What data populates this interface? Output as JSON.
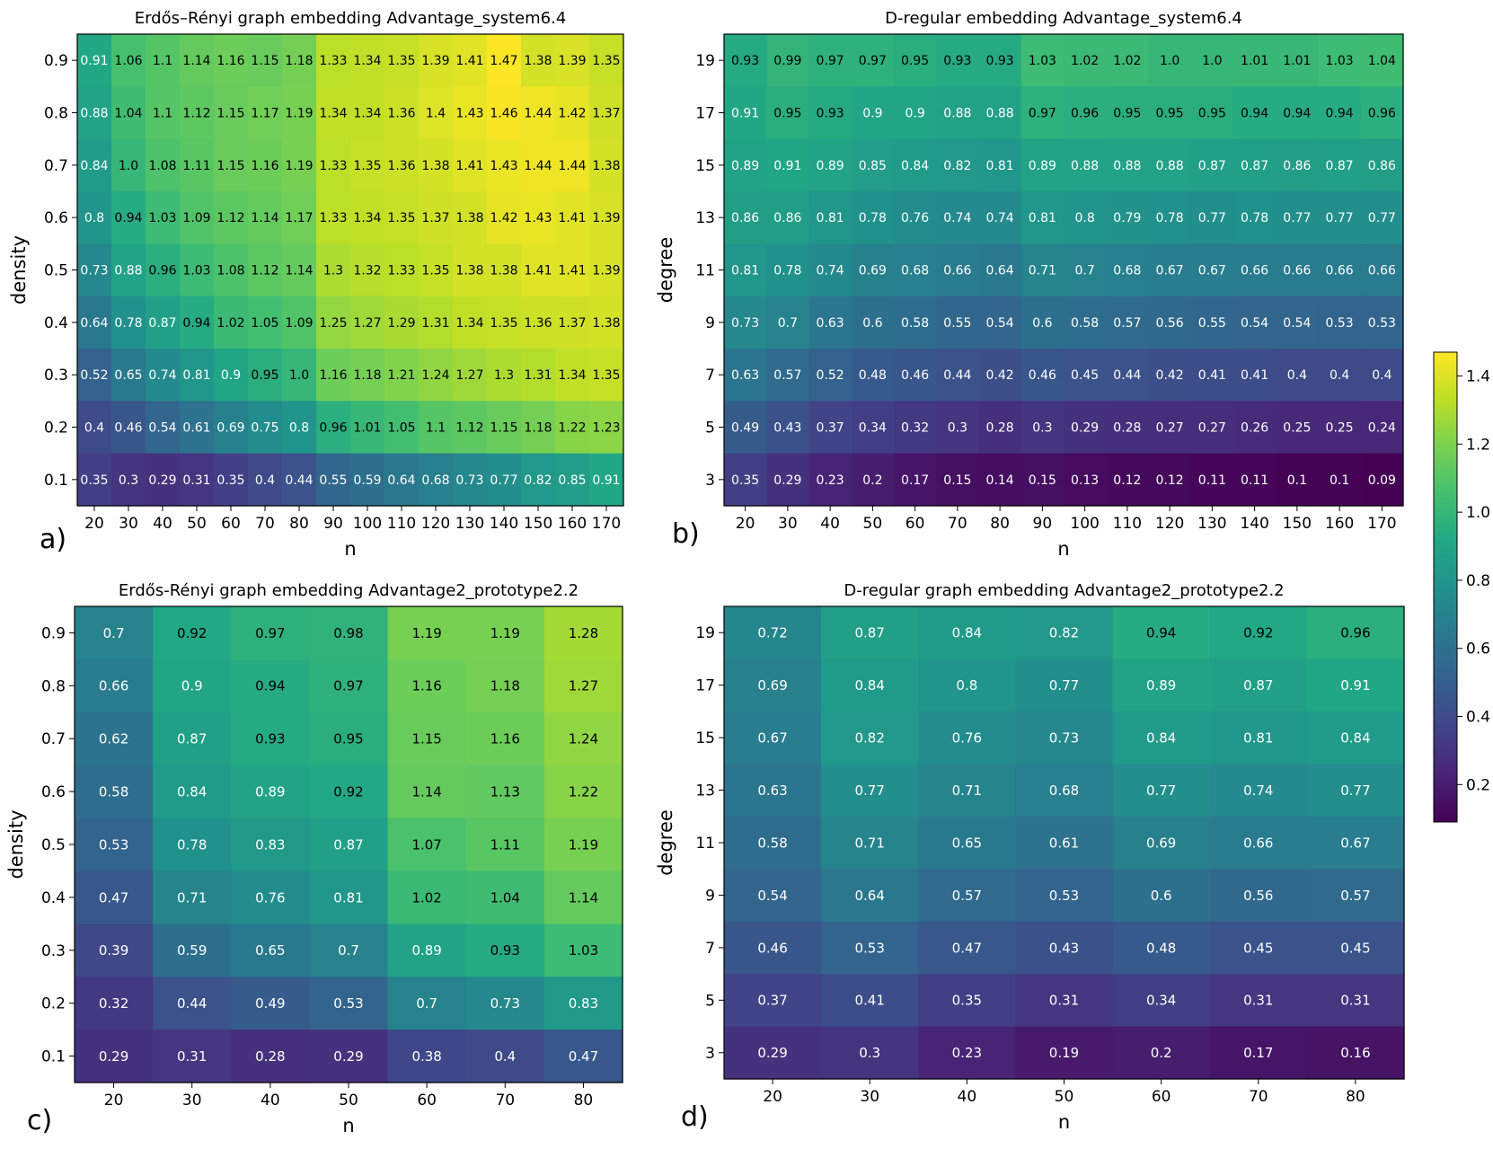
{
  "colorbar": {
    "colormap": "viridis",
    "vmin": 0.09,
    "vmax": 1.47,
    "ticks": [
      0.2,
      0.4,
      0.6,
      0.8,
      1.0,
      1.2,
      1.4
    ],
    "tick_labels": [
      "0.2",
      "0.4",
      "0.6",
      "0.8",
      "1.0",
      "1.2",
      "1.4"
    ]
  },
  "chart_data": [
    {
      "type": "heatmap",
      "panel_label": "a)",
      "title": "Erdős–Rényi graph embedding Advantage_system6.4",
      "xlabel": "n",
      "ylabel": "density",
      "x": [
        "20",
        "30",
        "40",
        "50",
        "60",
        "70",
        "80",
        "90",
        "100",
        "110",
        "120",
        "130",
        "140",
        "150",
        "160",
        "170"
      ],
      "y": [
        "0.9",
        "0.8",
        "0.7",
        "0.6",
        "0.5",
        "0.4",
        "0.3",
        "0.2",
        "0.1"
      ],
      "values": [
        [
          "0.91",
          "1.06",
          "1.1",
          "1.14",
          "1.16",
          "1.15",
          "1.18",
          "1.33",
          "1.34",
          "1.35",
          "1.39",
          "1.41",
          "1.47",
          "1.38",
          "1.39",
          "1.35"
        ],
        [
          "0.88",
          "1.04",
          "1.1",
          "1.12",
          "1.15",
          "1.17",
          "1.19",
          "1.34",
          "1.34",
          "1.36",
          "1.4",
          "1.43",
          "1.46",
          "1.44",
          "1.42",
          "1.37"
        ],
        [
          "0.84",
          "1.0",
          "1.08",
          "1.11",
          "1.15",
          "1.16",
          "1.19",
          "1.33",
          "1.35",
          "1.36",
          "1.38",
          "1.41",
          "1.43",
          "1.44",
          "1.44",
          "1.38"
        ],
        [
          "0.8",
          "0.94",
          "1.03",
          "1.09",
          "1.12",
          "1.14",
          "1.17",
          "1.33",
          "1.34",
          "1.35",
          "1.37",
          "1.38",
          "1.42",
          "1.43",
          "1.41",
          "1.39"
        ],
        [
          "0.73",
          "0.88",
          "0.96",
          "1.03",
          "1.08",
          "1.12",
          "1.14",
          "1.3",
          "1.32",
          "1.33",
          "1.35",
          "1.38",
          "1.38",
          "1.41",
          "1.41",
          "1.39"
        ],
        [
          "0.64",
          "0.78",
          "0.87",
          "0.94",
          "1.02",
          "1.05",
          "1.09",
          "1.25",
          "1.27",
          "1.29",
          "1.31",
          "1.34",
          "1.35",
          "1.36",
          "1.37",
          "1.38"
        ],
        [
          "0.52",
          "0.65",
          "0.74",
          "0.81",
          "0.9",
          "0.95",
          "1.0",
          "1.16",
          "1.18",
          "1.21",
          "1.24",
          "1.27",
          "1.3",
          "1.31",
          "1.34",
          "1.35"
        ],
        [
          "0.4",
          "0.46",
          "0.54",
          "0.61",
          "0.69",
          "0.75",
          "0.8",
          "0.96",
          "1.01",
          "1.05",
          "1.1",
          "1.12",
          "1.15",
          "1.18",
          "1.22",
          "1.23"
        ],
        [
          "0.35",
          "0.3",
          "0.29",
          "0.31",
          "0.35",
          "0.4",
          "0.44",
          "0.55",
          "0.59",
          "0.64",
          "0.68",
          "0.73",
          "0.77",
          "0.82",
          "0.85",
          "0.91"
        ]
      ]
    },
    {
      "type": "heatmap",
      "panel_label": "b)",
      "title": "D-regular embedding Advantage_system6.4",
      "xlabel": "n",
      "ylabel": "degree",
      "x": [
        "20",
        "30",
        "40",
        "50",
        "60",
        "70",
        "80",
        "90",
        "100",
        "110",
        "120",
        "130",
        "140",
        "150",
        "160",
        "170"
      ],
      "y": [
        "19",
        "17",
        "15",
        "13",
        "11",
        "9",
        "7",
        "5",
        "3"
      ],
      "values": [
        [
          "0.93",
          "0.99",
          "0.97",
          "0.97",
          "0.95",
          "0.93",
          "0.93",
          "1.03",
          "1.02",
          "1.02",
          "1.0",
          "1.0",
          "1.01",
          "1.01",
          "1.03",
          "1.04"
        ],
        [
          "0.91",
          "0.95",
          "0.93",
          "0.9",
          "0.9",
          "0.88",
          "0.88",
          "0.97",
          "0.96",
          "0.95",
          "0.95",
          "0.95",
          "0.94",
          "0.94",
          "0.94",
          "0.96"
        ],
        [
          "0.89",
          "0.91",
          "0.89",
          "0.85",
          "0.84",
          "0.82",
          "0.81",
          "0.89",
          "0.88",
          "0.88",
          "0.88",
          "0.87",
          "0.87",
          "0.86",
          "0.87",
          "0.86"
        ],
        [
          "0.86",
          "0.86",
          "0.81",
          "0.78",
          "0.76",
          "0.74",
          "0.74",
          "0.81",
          "0.8",
          "0.79",
          "0.78",
          "0.77",
          "0.78",
          "0.77",
          "0.77",
          "0.77"
        ],
        [
          "0.81",
          "0.78",
          "0.74",
          "0.69",
          "0.68",
          "0.66",
          "0.64",
          "0.71",
          "0.7",
          "0.68",
          "0.67",
          "0.67",
          "0.66",
          "0.66",
          "0.66",
          "0.66"
        ],
        [
          "0.73",
          "0.7",
          "0.63",
          "0.6",
          "0.58",
          "0.55",
          "0.54",
          "0.6",
          "0.58",
          "0.57",
          "0.56",
          "0.55",
          "0.54",
          "0.54",
          "0.53",
          "0.53"
        ],
        [
          "0.63",
          "0.57",
          "0.52",
          "0.48",
          "0.46",
          "0.44",
          "0.42",
          "0.46",
          "0.45",
          "0.44",
          "0.42",
          "0.41",
          "0.41",
          "0.4",
          "0.4",
          "0.4"
        ],
        [
          "0.49",
          "0.43",
          "0.37",
          "0.34",
          "0.32",
          "0.3",
          "0.28",
          "0.3",
          "0.29",
          "0.28",
          "0.27",
          "0.27",
          "0.26",
          "0.25",
          "0.25",
          "0.24"
        ],
        [
          "0.35",
          "0.29",
          "0.23",
          "0.2",
          "0.17",
          "0.15",
          "0.14",
          "0.15",
          "0.13",
          "0.12",
          "0.12",
          "0.11",
          "0.11",
          "0.1",
          "0.1",
          "0.09"
        ]
      ]
    },
    {
      "type": "heatmap",
      "panel_label": "c)",
      "title": "Erdős-Rényi graph embedding Advantage2_prototype2.2",
      "xlabel": "n",
      "ylabel": "density",
      "x": [
        "20",
        "30",
        "40",
        "50",
        "60",
        "70",
        "80"
      ],
      "y": [
        "0.9",
        "0.8",
        "0.7",
        "0.6",
        "0.5",
        "0.4",
        "0.3",
        "0.2",
        "0.1"
      ],
      "values": [
        [
          "0.7",
          "0.92",
          "0.97",
          "0.98",
          "1.19",
          "1.19",
          "1.28"
        ],
        [
          "0.66",
          "0.9",
          "0.94",
          "0.97",
          "1.16",
          "1.18",
          "1.27"
        ],
        [
          "0.62",
          "0.87",
          "0.93",
          "0.95",
          "1.15",
          "1.16",
          "1.24"
        ],
        [
          "0.58",
          "0.84",
          "0.89",
          "0.92",
          "1.14",
          "1.13",
          "1.22"
        ],
        [
          "0.53",
          "0.78",
          "0.83",
          "0.87",
          "1.07",
          "1.11",
          "1.19"
        ],
        [
          "0.47",
          "0.71",
          "0.76",
          "0.81",
          "1.02",
          "1.04",
          "1.14"
        ],
        [
          "0.39",
          "0.59",
          "0.65",
          "0.7",
          "0.89",
          "0.93",
          "1.03"
        ],
        [
          "0.32",
          "0.44",
          "0.49",
          "0.53",
          "0.7",
          "0.73",
          "0.83"
        ],
        [
          "0.29",
          "0.31",
          "0.28",
          "0.29",
          "0.38",
          "0.4",
          "0.47"
        ]
      ]
    },
    {
      "type": "heatmap",
      "panel_label": "d)",
      "title": "D-regular graph embedding Advantage2_prototype2.2",
      "xlabel": "n",
      "ylabel": "degree",
      "x": [
        "20",
        "30",
        "40",
        "50",
        "60",
        "70",
        "80"
      ],
      "y": [
        "19",
        "17",
        "15",
        "13",
        "11",
        "9",
        "7",
        "5",
        "3"
      ],
      "values": [
        [
          "0.72",
          "0.87",
          "0.84",
          "0.82",
          "0.94",
          "0.92",
          "0.96"
        ],
        [
          "0.69",
          "0.84",
          "0.8",
          "0.77",
          "0.89",
          "0.87",
          "0.91"
        ],
        [
          "0.67",
          "0.82",
          "0.76",
          "0.73",
          "0.84",
          "0.81",
          "0.84"
        ],
        [
          "0.63",
          "0.77",
          "0.71",
          "0.68",
          "0.77",
          "0.74",
          "0.77"
        ],
        [
          "0.58",
          "0.71",
          "0.65",
          "0.61",
          "0.69",
          "0.66",
          "0.67"
        ],
        [
          "0.54",
          "0.64",
          "0.57",
          "0.53",
          "0.6",
          "0.56",
          "0.57"
        ],
        [
          "0.46",
          "0.53",
          "0.47",
          "0.43",
          "0.48",
          "0.45",
          "0.45"
        ],
        [
          "0.37",
          "0.41",
          "0.35",
          "0.31",
          "0.34",
          "0.31",
          "0.31"
        ],
        [
          "0.29",
          "0.3",
          "0.23",
          "0.19",
          "0.2",
          "0.17",
          "0.16"
        ]
      ]
    }
  ]
}
